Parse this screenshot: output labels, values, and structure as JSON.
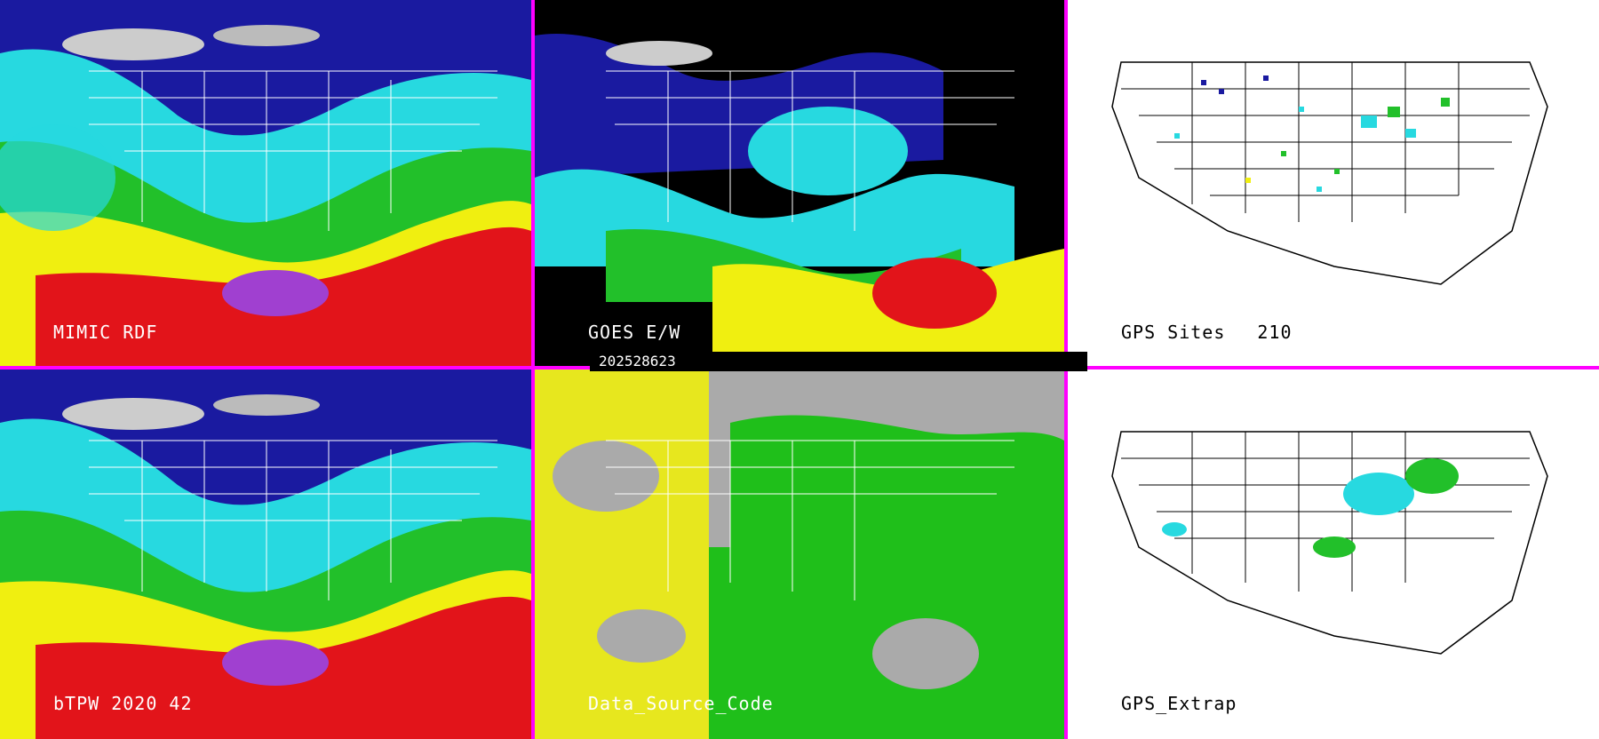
{
  "panels": [
    {
      "id": "mimic-rdf",
      "label": "MIMIC RDF"
    },
    {
      "id": "goes-ew",
      "label": "GOES E/W"
    },
    {
      "id": "gps-sites",
      "label": "GPS Sites",
      "count": "210"
    },
    {
      "id": "btpw",
      "label": "bTPW 2020 42"
    },
    {
      "id": "data-source-code",
      "label": "Data_Source_Code"
    },
    {
      "id": "gps-extrap",
      "label": "GPS_Extrap"
    }
  ],
  "timestamp": "202528623",
  "colors": {
    "divider": "#ff00ff",
    "low": "#1a1aa0",
    "mid_low": "#27d9e0",
    "mid": "#22c02a",
    "mid_high": "#f0ef10",
    "high": "#e2141a",
    "max": "#a040d0",
    "cloud_free": "#aaaaaa",
    "source_yellow": "#e7e71e",
    "source_green": "#1fbf1a"
  }
}
